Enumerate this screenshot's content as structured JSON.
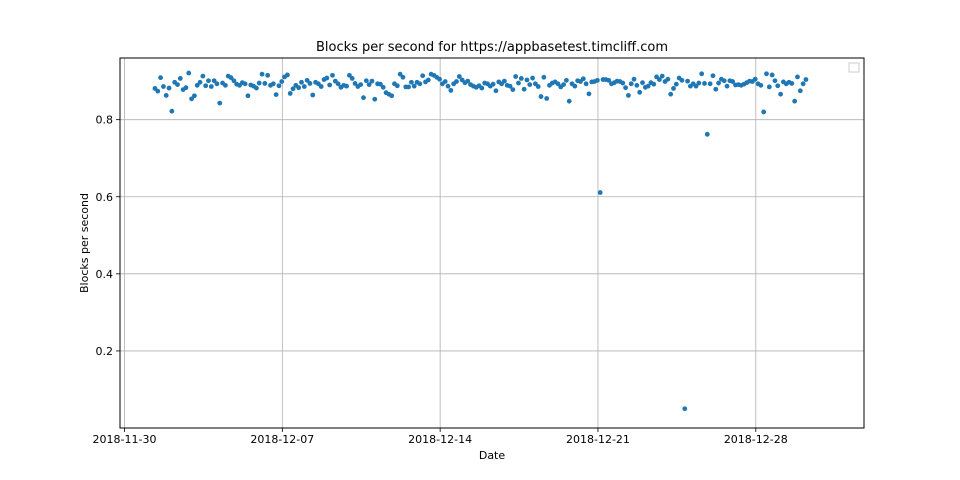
{
  "chart_data": {
    "type": "scatter",
    "title": "Blocks per second for https://appbasetest.timcliff.com",
    "xlabel": "Date",
    "ylabel": "Blocks per second",
    "x_range_days": [
      -0.2,
      32.8
    ],
    "ylim": [
      0.0,
      0.96
    ],
    "grid": true,
    "legend": "top-right (empty)",
    "point_color": "#1f77b4",
    "x_ticks": [
      {
        "label": "2018-11-30",
        "day": 0
      },
      {
        "label": "2018-12-07",
        "day": 7
      },
      {
        "label": "2018-12-14",
        "day": 14
      },
      {
        "label": "2018-12-21",
        "day": 21
      },
      {
        "label": "2018-12-28",
        "day": 28
      }
    ],
    "y_ticks": [
      {
        "label": "0.2",
        "value": 0.2
      },
      {
        "label": "0.4",
        "value": 0.4
      },
      {
        "label": "0.6",
        "value": 0.6
      },
      {
        "label": "0.8",
        "value": 0.8
      }
    ],
    "series": [
      {
        "name": "blocks_per_second",
        "day_start": 1.35,
        "day_step": 0.125,
        "values": [
          0.881,
          0.874,
          0.909,
          0.886,
          0.863,
          0.882,
          0.822,
          0.897,
          0.891,
          0.907,
          0.878,
          0.883,
          0.921,
          0.854,
          0.862,
          0.889,
          0.897,
          0.913,
          0.888,
          0.901,
          0.886,
          0.901,
          0.893,
          0.843,
          0.895,
          0.889,
          0.913,
          0.909,
          0.901,
          0.892,
          0.889,
          0.896,
          0.893,
          0.862,
          0.89,
          0.887,
          0.882,
          0.895,
          0.918,
          0.894,
          0.915,
          0.889,
          0.893,
          0.865,
          0.888,
          0.899,
          0.911,
          0.916,
          0.868,
          0.88,
          0.889,
          0.883,
          0.897,
          0.886,
          0.902,
          0.894,
          0.864,
          0.897,
          0.893,
          0.886,
          0.904,
          0.908,
          0.89,
          0.915,
          0.9,
          0.893,
          0.884,
          0.889,
          0.887,
          0.915,
          0.907,
          0.894,
          0.886,
          0.891,
          0.857,
          0.901,
          0.891,
          0.9,
          0.853,
          0.893,
          0.892,
          0.884,
          0.87,
          0.866,
          0.862,
          0.893,
          0.888,
          0.918,
          0.91,
          0.885,
          0.885,
          0.897,
          0.887,
          0.897,
          0.893,
          0.914,
          0.898,
          0.903,
          0.918,
          0.915,
          0.91,
          0.905,
          0.893,
          0.899,
          0.887,
          0.876,
          0.893,
          0.899,
          0.912,
          0.903,
          0.896,
          0.9,
          0.891,
          0.887,
          0.884,
          0.888,
          0.882,
          0.895,
          0.893,
          0.887,
          0.892,
          0.875,
          0.898,
          0.893,
          0.9,
          0.889,
          0.887,
          0.878,
          0.912,
          0.895,
          0.907,
          0.879,
          0.903,
          0.891,
          0.908,
          0.893,
          0.886,
          0.86,
          0.91,
          0.855,
          0.889,
          0.895,
          0.898,
          0.893,
          0.885,
          0.891,
          0.902,
          0.848,
          0.893,
          0.887,
          0.901,
          0.899,
          0.906,
          0.893,
          0.867,
          0.898,
          0.899,
          0.902,
          0.611,
          0.904,
          0.904,
          0.902,
          0.893,
          0.896,
          0.9,
          0.899,
          0.895,
          0.883,
          0.863,
          0.893,
          0.905,
          0.889,
          0.871,
          0.896,
          0.884,
          0.887,
          0.896,
          0.892,
          0.911,
          0.904,
          0.913,
          0.899,
          0.905,
          0.866,
          0.881,
          0.892,
          0.908,
          0.902,
          0.05,
          0.9,
          0.887,
          0.893,
          0.887,
          0.895,
          0.919,
          0.894,
          0.762,
          0.893,
          0.914,
          0.879,
          0.895,
          0.905,
          0.901,
          0.887,
          0.901,
          0.899,
          0.89,
          0.891,
          0.889,
          0.892,
          0.896,
          0.9,
          0.899,
          0.905,
          0.893,
          0.889,
          0.82,
          0.919,
          0.885,
          0.916,
          0.901,
          0.888,
          0.866,
          0.898,
          0.893,
          0.897,
          0.894,
          0.848,
          0.911,
          0.875,
          0.893,
          0.904
        ]
      }
    ]
  }
}
